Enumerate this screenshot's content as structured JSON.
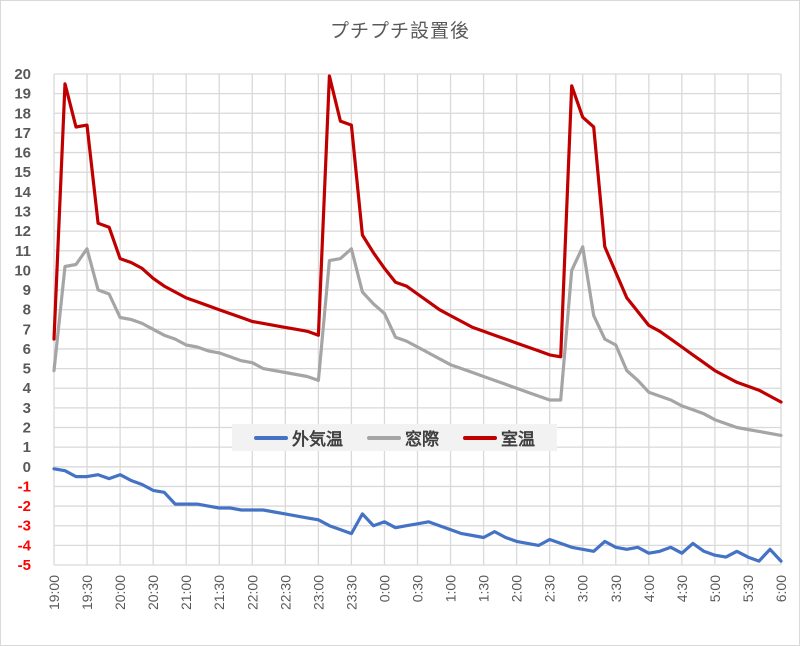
{
  "chart": {
    "title": "プチプチ設置後",
    "legend": [
      {
        "label": "外気温",
        "color": "#4472c4"
      },
      {
        "label": "窓際",
        "color": "#a5a5a5"
      },
      {
        "label": "室温",
        "color": "#c00000"
      }
    ]
  },
  "chart_data": {
    "type": "line",
    "title": "プチプチ設置後",
    "xlabel": "",
    "ylabel": "",
    "ylim": [
      -5,
      20
    ],
    "y_ticks": [
      20,
      19,
      18,
      17,
      16,
      15,
      14,
      13,
      12,
      11,
      10,
      9,
      8,
      7,
      6,
      5,
      4,
      3,
      2,
      1,
      0,
      -1,
      -2,
      -3,
      -4,
      -5
    ],
    "negative_tick_color": "#ff0000",
    "x_ticks": [
      "19:00",
      "19:30",
      "20:00",
      "20:30",
      "21:00",
      "21:30",
      "22:00",
      "22:30",
      "23:00",
      "23:30",
      "0:00",
      "0:30",
      "1:00",
      "1:30",
      "2:00",
      "2:30",
      "3:00",
      "3:30",
      "4:00",
      "4:30",
      "5:00",
      "5:30",
      "6:00"
    ],
    "grid": true,
    "legend_position": "inside-center",
    "x_step_minutes": 10,
    "x": [
      "19:00",
      "19:10",
      "19:20",
      "19:30",
      "19:40",
      "19:50",
      "20:00",
      "20:10",
      "20:20",
      "20:30",
      "20:40",
      "20:50",
      "21:00",
      "21:10",
      "21:20",
      "21:30",
      "21:40",
      "21:50",
      "22:00",
      "22:10",
      "22:20",
      "22:30",
      "22:40",
      "22:50",
      "23:00",
      "23:10",
      "23:20",
      "23:30",
      "23:40",
      "23:50",
      "0:00",
      "0:10",
      "0:20",
      "0:30",
      "0:40",
      "0:50",
      "1:00",
      "1:10",
      "1:20",
      "1:30",
      "1:40",
      "1:50",
      "2:00",
      "2:10",
      "2:20",
      "2:30",
      "2:40",
      "2:50",
      "3:00",
      "3:10",
      "3:20",
      "3:30",
      "3:40",
      "3:50",
      "4:00",
      "4:10",
      "4:20",
      "4:30",
      "4:40",
      "4:50",
      "5:00",
      "5:10",
      "5:20",
      "5:30",
      "5:40",
      "5:50",
      "6:00"
    ],
    "series": [
      {
        "name": "外気温",
        "color": "#4472c4",
        "values": [
          -0.1,
          -0.2,
          -0.5,
          -0.5,
          -0.4,
          -0.6,
          -0.4,
          -0.7,
          -0.9,
          -1.2,
          -1.3,
          -1.9,
          -1.9,
          -1.9,
          -2.0,
          -2.1,
          -2.1,
          -2.2,
          -2.2,
          -2.2,
          -2.3,
          -2.4,
          -2.5,
          -2.6,
          -2.7,
          -3.0,
          -3.2,
          -3.4,
          -2.4,
          -3.0,
          -2.8,
          -3.1,
          -3.0,
          -2.9,
          -2.8,
          -3.0,
          -3.2,
          -3.4,
          -3.5,
          -3.6,
          -3.3,
          -3.6,
          -3.8,
          -3.9,
          -4.0,
          -3.7,
          -3.9,
          -4.1,
          -4.2,
          -4.3,
          -3.8,
          -4.1,
          -4.2,
          -4.1,
          -4.4,
          -4.3,
          -4.1,
          -4.4,
          -3.9,
          -4.3,
          -4.5,
          -4.6,
          -4.3,
          -4.6,
          -4.8,
          -4.2,
          -4.8
        ]
      },
      {
        "name": "窓際",
        "color": "#a5a5a5",
        "values": [
          4.9,
          10.2,
          10.3,
          11.1,
          9.0,
          8.8,
          7.6,
          7.5,
          7.3,
          7.0,
          6.7,
          6.5,
          6.2,
          6.1,
          5.9,
          5.8,
          5.6,
          5.4,
          5.3,
          5.0,
          4.9,
          4.8,
          4.7,
          4.6,
          4.4,
          10.5,
          10.6,
          11.1,
          8.9,
          8.3,
          7.8,
          6.6,
          6.4,
          6.1,
          5.8,
          5.5,
          5.2,
          5.0,
          4.8,
          4.6,
          4.4,
          4.2,
          4.0,
          3.8,
          3.6,
          3.4,
          3.4,
          10.0,
          11.2,
          7.7,
          6.5,
          6.2,
          4.9,
          4.4,
          3.8,
          3.6,
          3.4,
          3.1,
          2.9,
          2.7,
          2.4,
          2.2,
          2.0,
          1.9,
          1.8,
          1.7,
          1.6
        ]
      },
      {
        "name": "室温",
        "color": "#c00000",
        "values": [
          6.5,
          19.5,
          17.3,
          17.4,
          12.4,
          12.2,
          10.6,
          10.4,
          10.1,
          9.6,
          9.2,
          8.9,
          8.6,
          8.4,
          8.2,
          8.0,
          7.8,
          7.6,
          7.4,
          7.3,
          7.2,
          7.1,
          7.0,
          6.9,
          6.7,
          19.9,
          17.6,
          17.4,
          11.8,
          10.9,
          10.1,
          9.4,
          9.2,
          8.8,
          8.4,
          8.0,
          7.7,
          7.4,
          7.1,
          6.9,
          6.7,
          6.5,
          6.3,
          6.1,
          5.9,
          5.7,
          5.6,
          19.4,
          17.8,
          17.3,
          11.2,
          9.9,
          8.6,
          7.9,
          7.2,
          6.9,
          6.5,
          6.1,
          5.7,
          5.3,
          4.9,
          4.6,
          4.3,
          4.1,
          3.9,
          3.6,
          3.3
        ]
      }
    ]
  }
}
